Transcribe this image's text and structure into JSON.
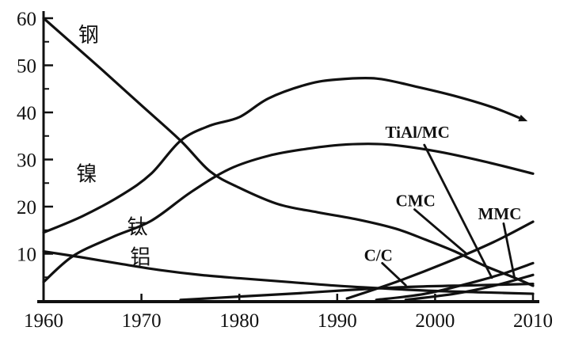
{
  "figure": {
    "background": "#ffffff",
    "ink_color": "#111111"
  },
  "chart_data": {
    "type": "line",
    "title": "",
    "xlabel": "",
    "ylabel": "",
    "grid": false,
    "legend_position": "inline-labels",
    "xlim": [
      1960,
      2010
    ],
    "ylim": [
      0,
      62
    ],
    "x_ticks": [
      1960,
      1970,
      1980,
      1990,
      2000,
      2010
    ],
    "y_ticks": [
      10,
      20,
      30,
      40,
      50,
      60
    ],
    "y_minor_ticks": [
      5,
      15,
      25,
      35,
      45,
      55
    ],
    "series": [
      {
        "name": "steel",
        "label": "钢",
        "label_pos": [
          1964.6,
          56.5
        ],
        "arrow_end": false,
        "points": [
          [
            1960,
            60
          ],
          [
            1963,
            54.5
          ],
          [
            1966,
            49
          ],
          [
            1970,
            41.5
          ],
          [
            1974,
            34
          ],
          [
            1977,
            27.5
          ],
          [
            1980,
            24
          ],
          [
            1984,
            20.5
          ],
          [
            1988,
            18.8
          ],
          [
            1992,
            17.3
          ],
          [
            1996,
            15.3
          ],
          [
            1999,
            13
          ],
          [
            2002,
            10.5
          ],
          [
            2005,
            7.5
          ],
          [
            2008,
            5
          ],
          [
            2010,
            3.2
          ]
        ]
      },
      {
        "name": "nickel",
        "label": "镍",
        "label_pos": [
          1964.4,
          27
        ],
        "arrow_end": true,
        "points": [
          [
            1960,
            14.5
          ],
          [
            1964,
            18
          ],
          [
            1968,
            22.5
          ],
          [
            1971,
            27
          ],
          [
            1974,
            34
          ],
          [
            1977,
            37.2
          ],
          [
            1980,
            39
          ],
          [
            1983,
            43
          ],
          [
            1987,
            46
          ],
          [
            1990,
            47
          ],
          [
            1994,
            47.2
          ],
          [
            1998,
            45.5
          ],
          [
            2002,
            43.5
          ],
          [
            2006,
            41
          ],
          [
            2009,
            38.5
          ]
        ]
      },
      {
        "name": "titanium",
        "label": "钛",
        "label_pos": [
          1969.6,
          15.7
        ],
        "arrow_end": false,
        "points": [
          [
            1960,
            4
          ],
          [
            1963,
            9.5
          ],
          [
            1967,
            13.5
          ],
          [
            1971,
            17
          ],
          [
            1975,
            23
          ],
          [
            1979,
            28
          ],
          [
            1983,
            30.8
          ],
          [
            1987,
            32.3
          ],
          [
            1991,
            33.2
          ],
          [
            1995,
            33.2
          ],
          [
            2000,
            31.8
          ],
          [
            2005,
            29.6
          ],
          [
            2010,
            27
          ]
        ]
      },
      {
        "name": "aluminum",
        "label": "铝",
        "label_pos": [
          1969.9,
          9.3
        ],
        "arrow_end": false,
        "points": [
          [
            1960,
            10.5
          ],
          [
            1964,
            9.2
          ],
          [
            1968,
            7.8
          ],
          [
            1972,
            6.5
          ],
          [
            1976,
            5.5
          ],
          [
            1980,
            4.8
          ],
          [
            1985,
            4
          ],
          [
            1990,
            3.2
          ],
          [
            1995,
            2.6
          ],
          [
            2000,
            2.1
          ],
          [
            2005,
            1.8
          ],
          [
            2010,
            1.5
          ]
        ]
      },
      {
        "name": "cc",
        "label": "",
        "label_pos": null,
        "arrow_end": false,
        "points": [
          [
            1974,
            0.2
          ],
          [
            1980,
            0.9
          ],
          [
            1986,
            1.6
          ],
          [
            1992,
            2.4
          ],
          [
            1998,
            3
          ],
          [
            2004,
            3.3
          ],
          [
            2010,
            3.6
          ]
        ]
      },
      {
        "name": "cmc",
        "label": "",
        "label_pos": null,
        "arrow_end": false,
        "points": [
          [
            1991,
            0.5
          ],
          [
            1996,
            4
          ],
          [
            2001,
            8
          ],
          [
            2006,
            12.5
          ],
          [
            2010,
            16.8
          ]
        ]
      },
      {
        "name": "tial-mc",
        "label": "",
        "label_pos": null,
        "arrow_end": false,
        "points": [
          [
            1994,
            0.2
          ],
          [
            1999,
            1.5
          ],
          [
            2004,
            4
          ],
          [
            2007,
            5.8
          ],
          [
            2010,
            8
          ]
        ]
      },
      {
        "name": "mmc",
        "label": "",
        "label_pos": null,
        "arrow_end": false,
        "points": [
          [
            1997,
            0.2
          ],
          [
            2002,
            1.5
          ],
          [
            2006,
            3.2
          ],
          [
            2010,
            5.5
          ]
        ]
      }
    ],
    "annotations": [
      {
        "name": "tial-mc",
        "label": "TiAl/MC",
        "label_pos": [
          1998.2,
          35.8
        ],
        "leader": [
          [
            1998.9,
            33.1
          ],
          [
            2005.8,
            4.9
          ]
        ]
      },
      {
        "name": "cmc",
        "label": "CMC",
        "label_pos": [
          1998.0,
          21.3
        ],
        "leader": [
          [
            1997.9,
            19.4
          ],
          [
            2003.2,
            10.0
          ]
        ]
      },
      {
        "name": "mmc",
        "label": "MMC",
        "label_pos": [
          2006.6,
          18.5
        ],
        "leader": [
          [
            2007.0,
            16.4
          ],
          [
            2008.1,
            5.0
          ]
        ]
      },
      {
        "name": "cc",
        "label": "C/C",
        "label_pos": [
          1994.2,
          9.7
        ],
        "leader": [
          [
            1994.6,
            8.0
          ],
          [
            1997.0,
            3.3
          ]
        ]
      }
    ]
  }
}
